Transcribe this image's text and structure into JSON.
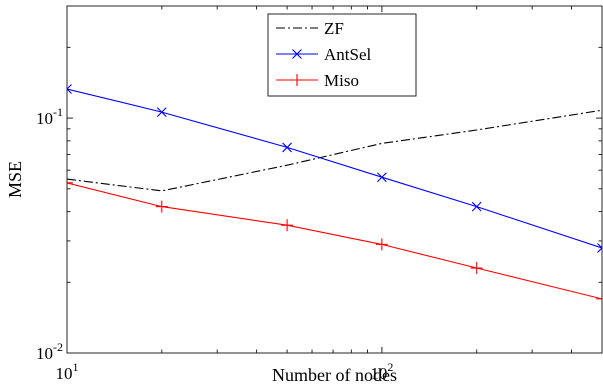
{
  "chart_data": {
    "type": "line",
    "title": "",
    "xlabel": "Number of nodes",
    "ylabel": "MSE",
    "xscale": "log",
    "yscale": "log",
    "xlim": [
      10,
      500
    ],
    "ylim": [
      0.01,
      0.3
    ],
    "x_ticks": [
      {
        "value": 10,
        "base": "10",
        "exp": "1"
      },
      {
        "value": 100,
        "base": "10",
        "exp": "2"
      }
    ],
    "y_ticks": [
      {
        "value": 0.01,
        "base": "10",
        "exp": "-2"
      },
      {
        "value": 0.1,
        "base": "10",
        "exp": "-1"
      }
    ],
    "grid": false,
    "legend_position": "top-center",
    "series": [
      {
        "name": "ZF",
        "color": "#000000",
        "line_style": "dash-dot",
        "marker": "none",
        "x": [
          10,
          20,
          50,
          100,
          200,
          500
        ],
        "y": [
          0.055,
          0.049,
          0.063,
          0.078,
          0.089,
          0.108
        ]
      },
      {
        "name": "AntSel",
        "color": "#0000ff",
        "line_style": "solid",
        "marker": "x",
        "x": [
          10,
          20,
          50,
          100,
          200,
          500
        ],
        "y": [
          0.133,
          0.106,
          0.075,
          0.056,
          0.042,
          0.028
        ]
      },
      {
        "name": "Miso",
        "color": "#ff0000",
        "line_style": "solid",
        "marker": "+",
        "x": [
          10,
          20,
          50,
          100,
          200,
          500
        ],
        "y": [
          0.053,
          0.042,
          0.035,
          0.029,
          0.023,
          0.017
        ]
      }
    ]
  }
}
